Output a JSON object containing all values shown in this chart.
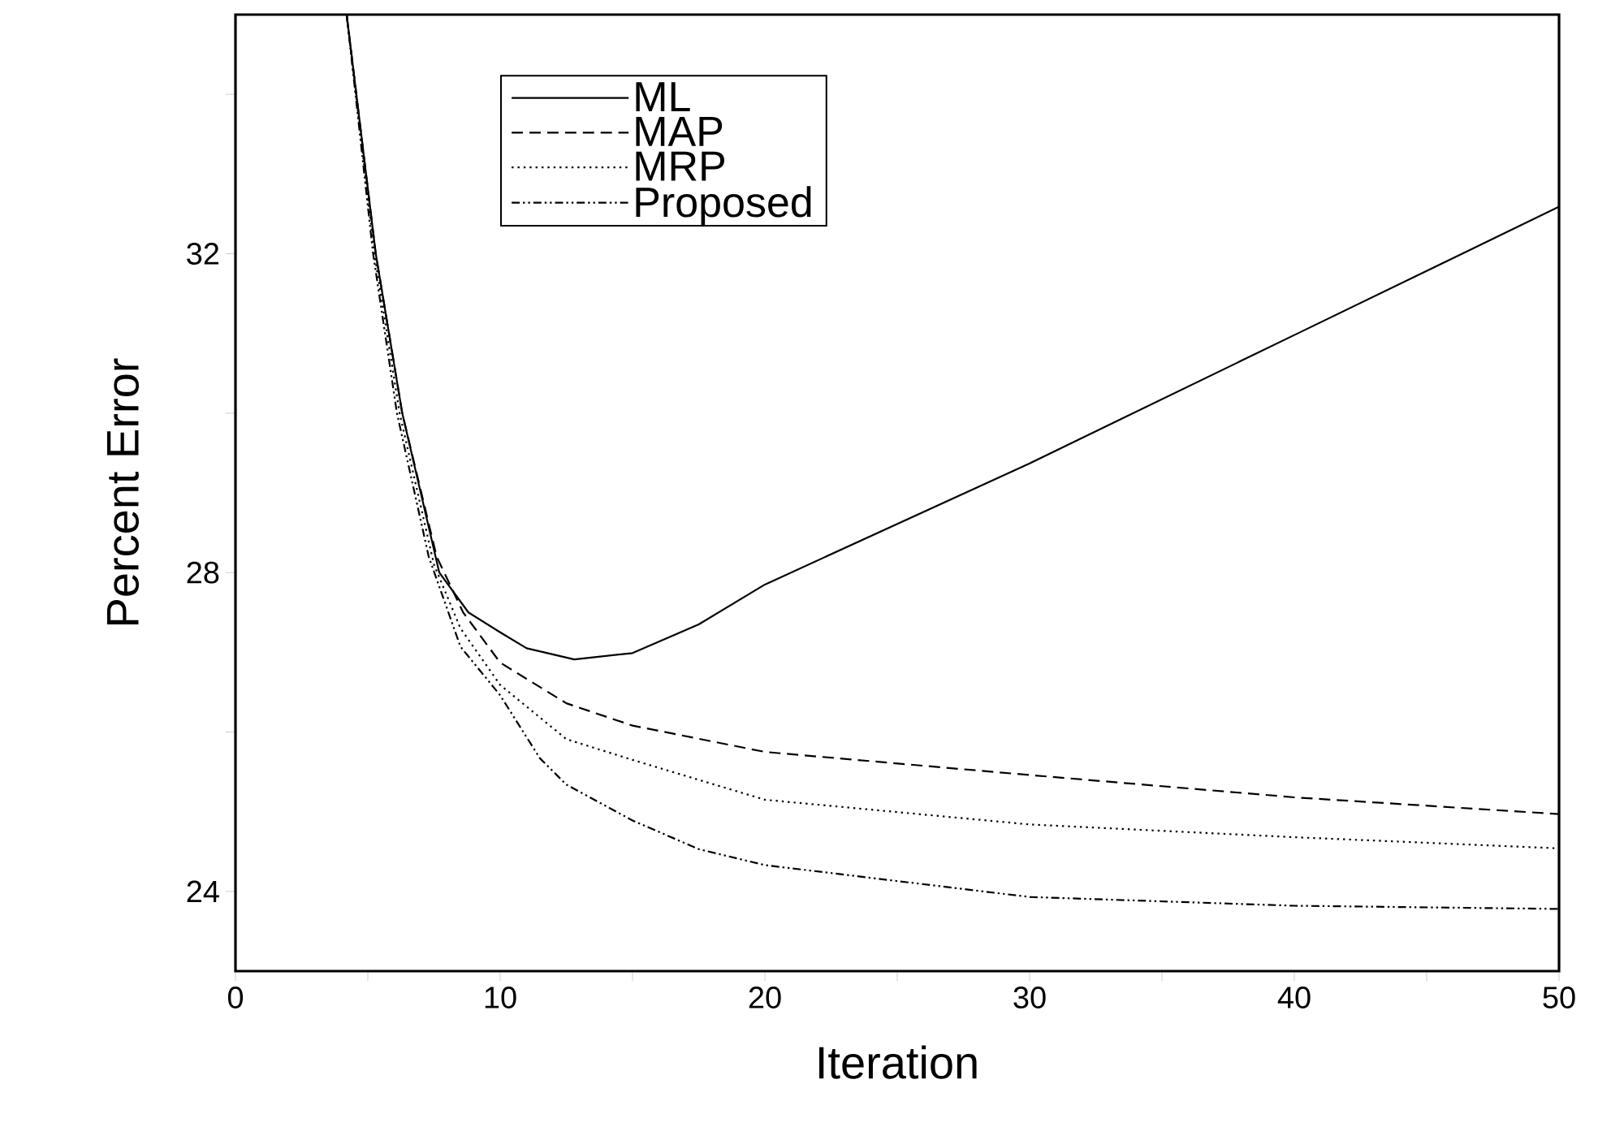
{
  "chart_data": {
    "type": "line",
    "xlabel": "Iteration",
    "ylabel": "Percent Error",
    "xlim": [
      0,
      50
    ],
    "ylim": [
      23,
      35
    ],
    "xticks": [
      0,
      {
        "value": 5,
        "label": null
      },
      10,
      {
        "value": 15,
        "label": null
      },
      20,
      {
        "value": 25,
        "label": null
      },
      30,
      {
        "value": 35,
        "label": null
      },
      40,
      {
        "value": 45,
        "label": null
      },
      50
    ],
    "yticks": [
      24,
      {
        "value": 26,
        "label": null
      },
      28,
      {
        "value": 30,
        "label": null
      },
      32,
      {
        "value": 34,
        "label": null
      }
    ],
    "legend": "top left",
    "grid": false,
    "marker": "none",
    "series": [
      {
        "name": "ML",
        "color": "#000000",
        "line_style": "solid",
        "x": [
          4.2,
          5.3,
          6.3,
          7.7,
          8.8,
          10,
          11,
          12.8,
          15,
          17.5,
          20,
          30,
          40,
          50
        ],
        "values": [
          35,
          32,
          30,
          28,
          27.5,
          27.25,
          27.05,
          26.91,
          26.99,
          27.35,
          27.85,
          29.37,
          30.98,
          32.59
        ]
      },
      {
        "name": "MAP",
        "color": "#000000",
        "line_style": "dashed",
        "x": [
          4.2,
          5.3,
          6.3,
          7.6,
          8.6,
          10,
          12.5,
          15,
          20,
          30,
          40,
          50
        ],
        "values": [
          35,
          32,
          30,
          28.2,
          27.5,
          26.87,
          26.36,
          26.08,
          25.75,
          25.46,
          25.18,
          24.97
        ]
      },
      {
        "name": "MRP",
        "color": "#000000",
        "line_style": "dotted",
        "x": [
          4.2,
          5.25,
          6.2,
          7.5,
          8.5,
          10,
          12.5,
          15,
          20,
          30,
          40,
          50
        ],
        "values": [
          35,
          32,
          30,
          28.1,
          27.3,
          26.59,
          25.91,
          25.65,
          25.15,
          24.84,
          24.68,
          24.54
        ]
      },
      {
        "name": "Proposed",
        "color": "#000000",
        "line_style": "dashdotted",
        "x": [
          4.2,
          5.2,
          6.1,
          7.3,
          8.5,
          10,
          11.5,
          12.5,
          15,
          17.5,
          20,
          30,
          40,
          50
        ],
        "values": [
          35,
          32,
          30,
          28.2,
          27.07,
          26.46,
          25.67,
          25.34,
          24.89,
          24.53,
          24.33,
          23.93,
          23.82,
          23.78
        ]
      }
    ]
  }
}
